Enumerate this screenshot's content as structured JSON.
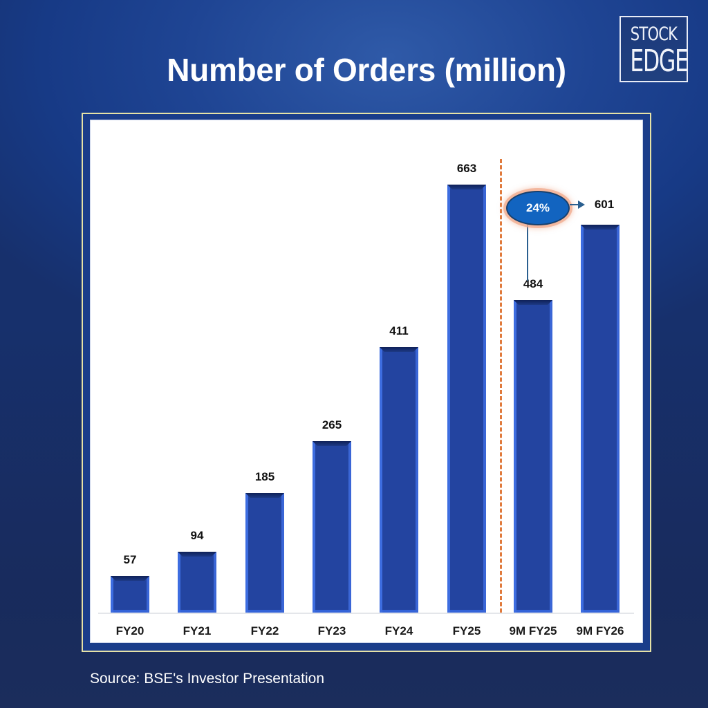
{
  "header": {
    "title": "Number of Orders (million)",
    "logo": {
      "line1": "STOCK",
      "line2": "EDGE"
    }
  },
  "chart_data": {
    "type": "bar",
    "title": "Number of Orders (million)",
    "xlabel": "",
    "ylabel": "",
    "categories": [
      "FY20",
      "FY21",
      "FY22",
      "FY23",
      "FY24",
      "FY25",
      "9M FY25",
      "9M FY26"
    ],
    "values": [
      57,
      94,
      185,
      265,
      411,
      663,
      484,
      601
    ],
    "value_labels": [
      "57",
      "94",
      "185",
      "265",
      "411",
      "663",
      "484",
      "601"
    ],
    "ylim": [
      0,
      700
    ],
    "grid": false,
    "legend": null,
    "annotations": [
      {
        "type": "divider",
        "style": "dashed",
        "color": "#e07a3c",
        "position": "between FY25 and 9M FY25"
      },
      {
        "type": "growth-bubble",
        "text": "24%",
        "from": "9M FY25",
        "to": "9M FY26"
      }
    ],
    "colors": {
      "bar": "#2344a0",
      "bar_edge": "#3d6de0",
      "divider": "#e07a3c",
      "bubble": "#1264c0"
    }
  },
  "annotation": {
    "growth_label": "24%"
  },
  "footer": {
    "source": "Source: BSE's Investor Presentation"
  }
}
